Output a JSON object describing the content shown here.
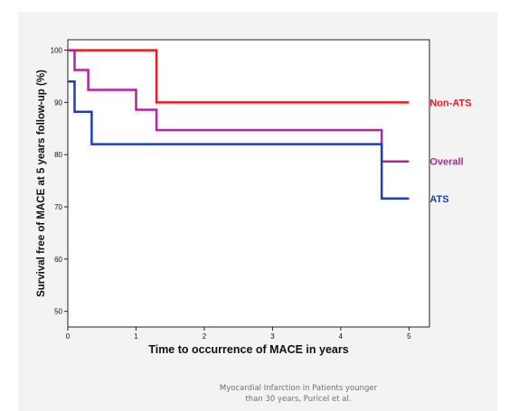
{
  "chart_data": {
    "type": "line",
    "step": true,
    "xlabel": "Time to occurrence of MACE in years",
    "ylabel": "Survival free of MACE at 5 years follow-up (%)",
    "xlim": [
      0,
      5.3
    ],
    "ylim": [
      47,
      102
    ],
    "xticks": [
      0,
      1,
      2,
      3,
      4,
      5
    ],
    "yticks": [
      50,
      60,
      70,
      80,
      90,
      100
    ],
    "grid": false,
    "series": [
      {
        "name": "Non-ATS",
        "color": "#e8191f",
        "points": [
          [
            0,
            100
          ],
          [
            1.3,
            100
          ],
          [
            1.3,
            90
          ],
          [
            5,
            90
          ]
        ]
      },
      {
        "name": "Overall",
        "color": "#b5229e",
        "points": [
          [
            0,
            100
          ],
          [
            0.1,
            100
          ],
          [
            0.1,
            96.2
          ],
          [
            0.3,
            96.2
          ],
          [
            0.3,
            92.4
          ],
          [
            1.0,
            92.4
          ],
          [
            1.0,
            88.6
          ],
          [
            1.3,
            88.6
          ],
          [
            1.3,
            84.7
          ],
          [
            4.6,
            84.7
          ],
          [
            4.6,
            78.7
          ],
          [
            5,
            78.7
          ]
        ]
      },
      {
        "name": "ATS",
        "color": "#1f3eb4",
        "points": [
          [
            0,
            94
          ],
          [
            0.1,
            94
          ],
          [
            0.1,
            88.2
          ],
          [
            0.35,
            88.2
          ],
          [
            0.35,
            82
          ],
          [
            4.6,
            82
          ],
          [
            4.6,
            71.6
          ],
          [
            5,
            71.6
          ]
        ]
      }
    ]
  },
  "caption": {
    "line1": "Myocardial Infarction in Patients younger",
    "line2": "than 30 years, Puricel et al."
  }
}
